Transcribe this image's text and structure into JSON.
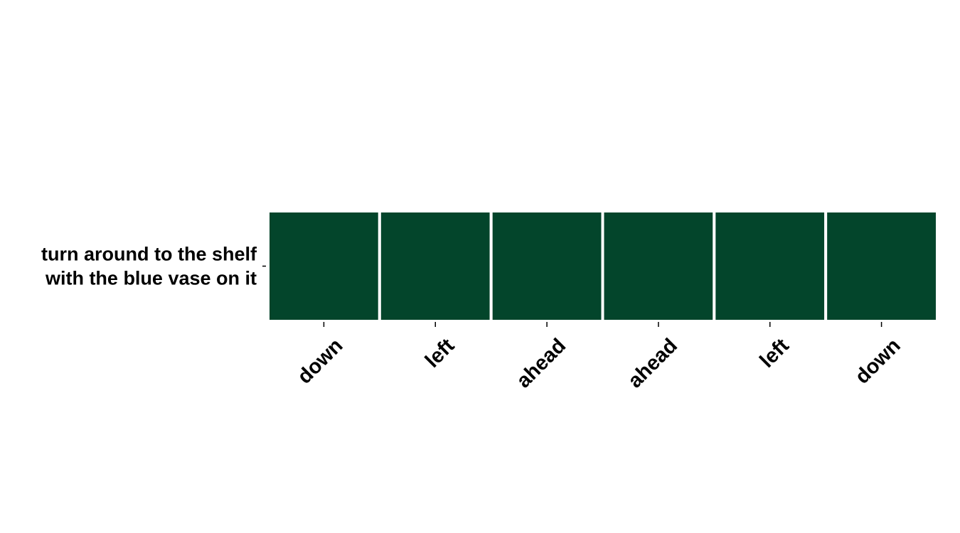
{
  "chart_data": {
    "type": "heatmap",
    "rows": [
      {
        "label_lines": [
          "turn around to the shelf",
          "with the blue vase on it"
        ],
        "values": [
          1,
          1,
          1,
          1,
          1,
          1
        ]
      }
    ],
    "columns": [
      "down",
      "left",
      "ahead",
      "ahead",
      "left",
      "down"
    ],
    "cell_color": "#03452b",
    "legend": false,
    "grid": false
  }
}
